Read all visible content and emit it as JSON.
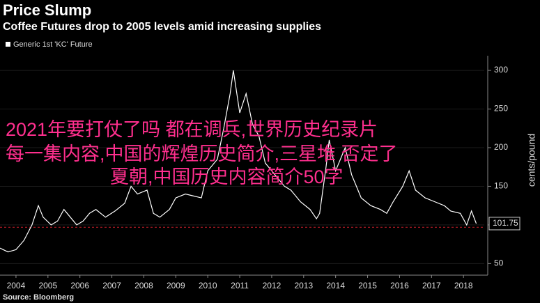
{
  "chart_data": {
    "type": "line",
    "title": "Price Slump",
    "subtitle": "Coffee Futures drop to 2005 levels amid increasing supplies",
    "y_label": "cents/pound",
    "source": "Source: Bloomberg",
    "x": [
      2004.0,
      2004.25,
      2004.5,
      2004.75,
      2005.0,
      2005.2,
      2005.35,
      2005.6,
      2005.8,
      2006.0,
      2006.2,
      2006.4,
      2006.6,
      2006.8,
      2007.0,
      2007.3,
      2007.6,
      2007.9,
      2008.1,
      2008.3,
      2008.6,
      2008.8,
      2009.0,
      2009.3,
      2009.5,
      2009.8,
      2010.0,
      2010.3,
      2010.5,
      2010.8,
      2011.0,
      2011.2,
      2011.3,
      2011.5,
      2011.7,
      2011.9,
      2012.1,
      2012.3,
      2012.6,
      2012.9,
      2013.1,
      2013.4,
      2013.7,
      2013.9,
      2014.0,
      2014.2,
      2014.3,
      2014.5,
      2014.8,
      2015.0,
      2015.3,
      2015.6,
      2015.9,
      2016.1,
      2016.3,
      2016.6,
      2016.8,
      2017.0,
      2017.3,
      2017.6,
      2017.9,
      2018.1,
      2018.4,
      2018.6,
      2018.75,
      2018.9
    ],
    "series": [
      {
        "name": "Generic 1st 'KC' Future",
        "color": "#ffffff",
        "values": [
          70,
          65,
          68,
          80,
          100,
          125,
          110,
          100,
          105,
          120,
          110,
          100,
          105,
          115,
          120,
          110,
          118,
          128,
          150,
          140,
          145,
          115,
          110,
          120,
          135,
          140,
          138,
          135,
          170,
          185,
          225,
          270,
          300,
          245,
          270,
          230,
          215,
          180,
          165,
          150,
          145,
          130,
          120,
          108,
          115,
          175,
          210,
          170,
          200,
          165,
          135,
          125,
          120,
          115,
          130,
          150,
          170,
          145,
          135,
          130,
          125,
          118,
          115,
          100,
          118,
          101.75
        ]
      }
    ],
    "last_value": 101.75,
    "reference_line": 97,
    "xlim": [
      2004,
      2019.15
    ],
    "xticks": [
      {
        "value": 2004.5,
        "label": "2004"
      },
      {
        "value": 2005.5,
        "label": "2005"
      },
      {
        "value": 2006.5,
        "label": "2006"
      },
      {
        "value": 2007.5,
        "label": "2007"
      },
      {
        "value": 2008.5,
        "label": "2008"
      },
      {
        "value": 2009.5,
        "label": "2009"
      },
      {
        "value": 2010.5,
        "label": "2010"
      },
      {
        "value": 2011.5,
        "label": "2011"
      },
      {
        "value": 2012.5,
        "label": "2012"
      },
      {
        "value": 2013.5,
        "label": "2013"
      },
      {
        "value": 2014.5,
        "label": "2014"
      },
      {
        "value": 2015.5,
        "label": "2015"
      },
      {
        "value": 2016.5,
        "label": "2016"
      },
      {
        "value": 2017.5,
        "label": "2017"
      },
      {
        "value": 2018.5,
        "label": "2018"
      }
    ],
    "ylim": [
      35,
      319
    ],
    "yticks": [
      50,
      100,
      150,
      200,
      250,
      300
    ],
    "grid": true,
    "overlay_text": [
      "2021年要打仗了吗 都在调兵,世界历史纪录片",
      "每一集内容,中国的辉煌历史简介,三星堆 否定了",
      "夏朝,中国历史内容简介50字"
    ]
  }
}
